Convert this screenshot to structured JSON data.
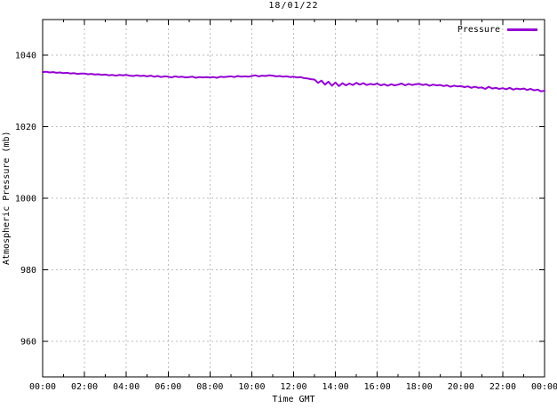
{
  "chart": {
    "title": "18/01/22",
    "xlabel": "Time GMT",
    "ylabel": "Atmospheric Pressure (mb)",
    "legend_label": "Pressure"
  },
  "chart_data": {
    "type": "line",
    "title": "18/01/22",
    "xlabel": "Time GMT",
    "ylabel": "Atmospheric Pressure (mb)",
    "grid": true,
    "legend_position": "top-right",
    "xlim_hours": [
      0,
      24
    ],
    "ylim": [
      950,
      1050
    ],
    "y_ticks": [
      960,
      980,
      1000,
      1020,
      1040
    ],
    "x_tick_hours": [
      0,
      2,
      4,
      6,
      8,
      10,
      12,
      14,
      16,
      18,
      20,
      22,
      24
    ],
    "x_tick_labels": [
      "00:00",
      "02:00",
      "04:00",
      "06:00",
      "08:00",
      "10:00",
      "12:00",
      "14:00",
      "16:00",
      "18:00",
      "20:00",
      "22:00",
      "00:00"
    ],
    "x_minor_every_hours": 1,
    "colors": {
      "line": "#9400d3",
      "grid": "#bcbcbc",
      "axis": "#000000",
      "background": "#ffffff"
    },
    "series": [
      {
        "name": "Pressure",
        "color": "#9400d3",
        "x_start_hour": 0,
        "x_step_minutes": 10,
        "values": [
          1035.3,
          1035.4,
          1035.2,
          1035.3,
          1035.1,
          1035.2,
          1035.0,
          1035.1,
          1034.9,
          1035.0,
          1034.8,
          1034.9,
          1034.9,
          1034.7,
          1034.8,
          1034.6,
          1034.7,
          1034.5,
          1034.6,
          1034.4,
          1034.5,
          1034.3,
          1034.5,
          1034.4,
          1034.5,
          1034.3,
          1034.2,
          1034.4,
          1034.2,
          1034.3,
          1034.1,
          1034.3,
          1034.0,
          1034.2,
          1033.9,
          1034.1,
          1034.0,
          1033.8,
          1034.1,
          1033.9,
          1034.0,
          1033.8,
          1033.9,
          1034.0,
          1033.7,
          1033.9,
          1033.8,
          1033.9,
          1033.8,
          1033.9,
          1033.7,
          1034.0,
          1033.9,
          1034.0,
          1034.1,
          1033.9,
          1034.2,
          1034.0,
          1034.1,
          1034.0,
          1034.2,
          1034.4,
          1034.1,
          1034.3,
          1034.2,
          1034.4,
          1034.3,
          1034.1,
          1034.2,
          1034.0,
          1034.1,
          1033.9,
          1034.0,
          1033.8,
          1033.9,
          1033.6,
          1033.5,
          1033.3,
          1033.2,
          1032.3,
          1032.9,
          1031.8,
          1032.6,
          1031.5,
          1032.4,
          1031.4,
          1032.2,
          1031.6,
          1032.1,
          1031.7,
          1032.3,
          1031.8,
          1032.2,
          1031.7,
          1032.0,
          1031.8,
          1032.1,
          1031.6,
          1031.9,
          1031.5,
          1031.9,
          1031.6,
          1031.8,
          1032.1,
          1031.6,
          1032.0,
          1031.7,
          1031.9,
          1032.0,
          1031.7,
          1031.9,
          1031.5,
          1031.8,
          1031.6,
          1031.7,
          1031.4,
          1031.6,
          1031.2,
          1031.5,
          1031.3,
          1031.4,
          1031.1,
          1031.3,
          1030.9,
          1031.2,
          1030.9,
          1031.0,
          1030.6,
          1031.2,
          1030.7,
          1030.9,
          1030.6,
          1030.8,
          1030.5,
          1030.9,
          1030.4,
          1030.7,
          1030.5,
          1030.7,
          1030.3,
          1030.6,
          1030.2,
          1030.4,
          1029.9,
          1030.1
        ]
      }
    ]
  }
}
